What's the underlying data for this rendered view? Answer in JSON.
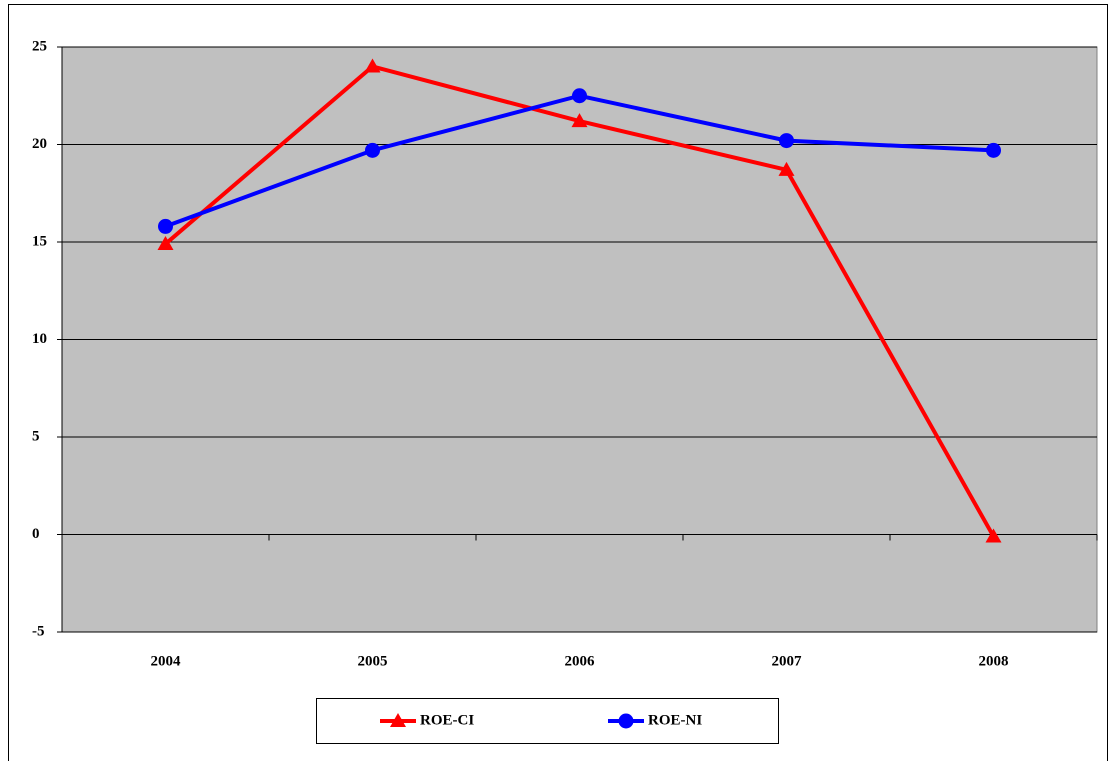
{
  "chart_data": {
    "type": "line",
    "categories": [
      "2004",
      "2005",
      "2006",
      "2007",
      "2008"
    ],
    "series": [
      {
        "name": "ROE-CI",
        "color": "#ff0000",
        "marker": "triangle",
        "values": [
          14.9,
          24.0,
          21.2,
          18.7,
          -0.1
        ]
      },
      {
        "name": "ROE-NI",
        "color": "#0000ff",
        "marker": "circle",
        "values": [
          15.8,
          19.7,
          22.5,
          20.2,
          19.7
        ]
      }
    ],
    "ylim": [
      -5,
      25
    ],
    "yticks": [
      -5,
      0,
      5,
      10,
      15,
      20,
      25
    ],
    "grid": true,
    "legend": "bottom",
    "plot_background": "#c0c0c0"
  }
}
